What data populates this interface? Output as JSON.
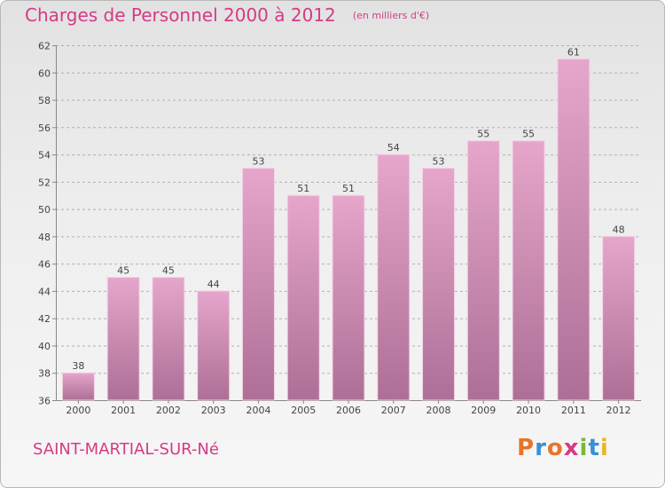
{
  "header": {
    "title": "Charges de Personnel 2000 à 2012",
    "unit": "(en milliers d'€)"
  },
  "footer": {
    "commune": "SAINT-MARTIAL-SUR-Né",
    "logo_text": "Proxiti",
    "logo_colors": [
      "#e8742a",
      "#3a8fd6",
      "#e8742a",
      "#d63a86",
      "#7ab83c",
      "#3a8fd6",
      "#e8b62a"
    ]
  },
  "colors": {
    "bar_top": "#e6a6cb",
    "bar_bottom": "#ad6f96",
    "text": "#d63a86",
    "grid": "#b0b0b0"
  },
  "chart_data": {
    "type": "bar",
    "categories": [
      "2000",
      "2001",
      "2002",
      "2003",
      "2004",
      "2005",
      "2006",
      "2007",
      "2008",
      "2009",
      "2010",
      "2011",
      "2012"
    ],
    "values": [
      38,
      45,
      45,
      44,
      53,
      51,
      51,
      54,
      53,
      55,
      55,
      61,
      48
    ],
    "ylim": [
      36,
      62
    ],
    "yticks": [
      36,
      38,
      40,
      42,
      44,
      46,
      48,
      50,
      52,
      54,
      56,
      58,
      60,
      62
    ],
    "grid": true,
    "title": "Charges de Personnel 2000 à 2012",
    "xlabel": "",
    "ylabel": ""
  }
}
